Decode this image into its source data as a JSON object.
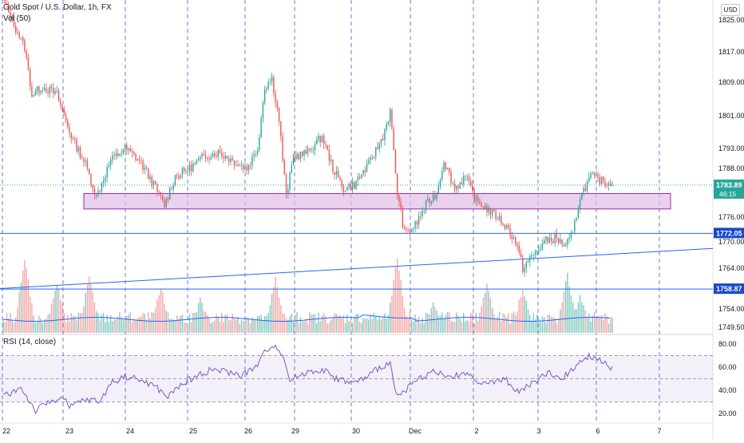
{
  "legend": {
    "title": "Gold Spot / U.S. Dollar, 1h, FX",
    "volume": "Vol (50)",
    "rsi": "RSI (14, close)"
  },
  "currency": "USD",
  "colors": {
    "up": "#26a69a",
    "down": "#ef5350",
    "vol_up": "#80cbc4",
    "vol_down": "#f4a7a5",
    "line": "#2962ff",
    "zone_fill": "#e1bee7",
    "zone_stroke": "#9c27b0",
    "rsi": "#7e57c2",
    "grid": "#4a67d6"
  },
  "chart_data": {
    "type": "candlestick",
    "title": "Gold Spot / U.S. Dollar, 1h, FX",
    "x_tick_labels": [
      "22",
      "23",
      "24",
      "25",
      "26",
      "29",
      "30",
      "Dec",
      "2",
      "3",
      "6",
      "7"
    ],
    "y_ticks": [
      1825.0,
      1817.0,
      1809.0,
      1801.0,
      1793.0,
      1788.0,
      1776.0,
      1770.0,
      1764.0,
      1754.0,
      1749.5
    ],
    "price_labels": {
      "last": "1783.89",
      "countdown": "46:15",
      "line_upper": "1772.05",
      "line_lower": "1758.87"
    },
    "price_path_anchors": [
      [
        0,
        1830
      ],
      [
        12,
        1818
      ],
      [
        16,
        1806
      ],
      [
        22,
        1808
      ],
      [
        30,
        1806
      ],
      [
        38,
        1796
      ],
      [
        46,
        1789
      ],
      [
        52,
        1781
      ],
      [
        60,
        1790
      ],
      [
        68,
        1793
      ],
      [
        76,
        1790
      ],
      [
        84,
        1784
      ],
      [
        90,
        1779
      ],
      [
        96,
        1786
      ],
      [
        104,
        1788
      ],
      [
        112,
        1791
      ],
      [
        120,
        1792
      ],
      [
        128,
        1790
      ],
      [
        136,
        1788
      ],
      [
        142,
        1793
      ],
      [
        146,
        1808
      ],
      [
        150,
        1810
      ],
      [
        154,
        1800
      ],
      [
        158,
        1781
      ],
      [
        162,
        1791
      ],
      [
        170,
        1792
      ],
      [
        178,
        1796
      ],
      [
        184,
        1788
      ],
      [
        190,
        1783
      ],
      [
        196,
        1784
      ],
      [
        204,
        1789
      ],
      [
        212,
        1796
      ],
      [
        216,
        1802
      ],
      [
        220,
        1782
      ],
      [
        224,
        1772
      ],
      [
        230,
        1774
      ],
      [
        236,
        1779
      ],
      [
        242,
        1782
      ],
      [
        246,
        1790
      ],
      [
        252,
        1783
      ],
      [
        258,
        1786
      ],
      [
        264,
        1780
      ],
      [
        270,
        1778
      ],
      [
        276,
        1776
      ],
      [
        282,
        1773
      ],
      [
        286,
        1770
      ],
      [
        290,
        1764
      ],
      [
        296,
        1767
      ],
      [
        302,
        1770
      ],
      [
        308,
        1771
      ],
      [
        314,
        1769
      ],
      [
        318,
        1772
      ],
      [
        322,
        1781
      ],
      [
        328,
        1786
      ],
      [
        334,
        1785
      ],
      [
        340,
        1783.89
      ]
    ],
    "volume_spikes": [
      [
        12,
        0.95
      ],
      [
        30,
        0.62
      ],
      [
        48,
        0.7
      ],
      [
        88,
        0.55
      ],
      [
        110,
        0.4
      ],
      [
        152,
        0.68
      ],
      [
        220,
        0.95
      ],
      [
        240,
        0.35
      ],
      [
        270,
        0.6
      ],
      [
        290,
        0.55
      ],
      [
        315,
        0.72
      ],
      [
        322,
        0.45
      ]
    ],
    "support_zone": {
      "y_top": 1781.8,
      "y_bottom": 1778.0
    },
    "horizontal_lines": [
      1772.05,
      1758.87
    ],
    "trendline": {
      "from": 1759,
      "to": 1768.5
    },
    "rsi": {
      "y_ticks": [
        80.0,
        60.0,
        40.0,
        20.0
      ],
      "band_upper": 70,
      "band_mid": 50,
      "band_lower": 30,
      "anchors": [
        [
          0,
          35
        ],
        [
          10,
          42
        ],
        [
          18,
          22
        ],
        [
          26,
          30
        ],
        [
          32,
          34
        ],
        [
          38,
          26
        ],
        [
          46,
          32
        ],
        [
          54,
          30
        ],
        [
          60,
          46
        ],
        [
          68,
          52
        ],
        [
          76,
          49
        ],
        [
          84,
          44
        ],
        [
          92,
          34
        ],
        [
          100,
          46
        ],
        [
          108,
          52
        ],
        [
          116,
          58
        ],
        [
          124,
          56
        ],
        [
          132,
          53
        ],
        [
          140,
          58
        ],
        [
          146,
          72
        ],
        [
          150,
          80
        ],
        [
          156,
          72
        ],
        [
          160,
          48
        ],
        [
          168,
          55
        ],
        [
          178,
          58
        ],
        [
          186,
          50
        ],
        [
          196,
          46
        ],
        [
          204,
          52
        ],
        [
          210,
          60
        ],
        [
          216,
          63
        ],
        [
          220,
          35
        ],
        [
          226,
          42
        ],
        [
          234,
          52
        ],
        [
          242,
          57
        ],
        [
          248,
          50
        ],
        [
          256,
          55
        ],
        [
          264,
          49
        ],
        [
          272,
          46
        ],
        [
          280,
          50
        ],
        [
          288,
          38
        ],
        [
          296,
          47
        ],
        [
          304,
          55
        ],
        [
          312,
          50
        ],
        [
          318,
          58
        ],
        [
          322,
          67
        ],
        [
          328,
          70
        ],
        [
          334,
          66
        ],
        [
          340,
          59
        ]
      ]
    }
  }
}
